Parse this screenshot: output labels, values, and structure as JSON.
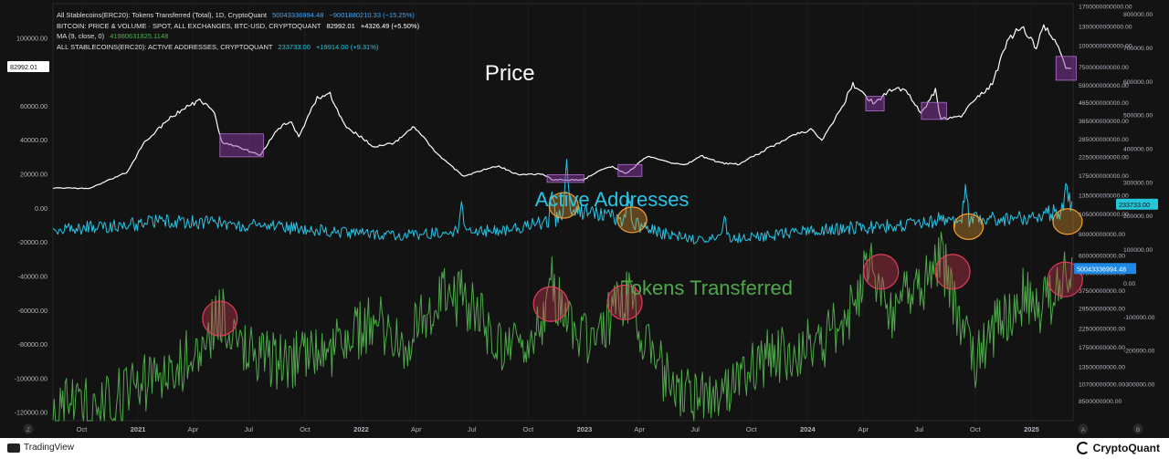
{
  "legend": {
    "rows": [
      {
        "text": "All Stablecoins(ERC20): Tokens Transferred (Total), 1D, CryptoQuant",
        "value": "50043336994.48",
        "change": "−9001880210.33 (−15.25%)",
        "value_color": "#42a5f5",
        "change_color": "#42a5f5"
      },
      {
        "text": "BITCOIN: PRICE & VOLUME · SPOT, ALL EXCHANGES, BTC-USD, CRYPTOQUANT",
        "value": "82992.01",
        "change": "+4326.49 (+5.50%)",
        "value_color": "#ffffff",
        "change_color": "#ffffff"
      },
      {
        "text": "MA (9, close, 0)",
        "value": "41980631825.1148",
        "change": "",
        "value_color": "#4caf50",
        "change_color": "#4caf50"
      },
      {
        "text": "ALL STABLECOINS(ERC20): ACTIVE ADDRESSES, CRYPTOQUANT",
        "value": "233733.00",
        "change": "+19914.00 (+9.31%)",
        "value_color": "#26c6da",
        "change_color": "#26c6da"
      }
    ]
  },
  "chart_data": {
    "type": "line",
    "x_range": [
      "2020-08-15",
      "2025-03-10"
    ],
    "x_ticks": [
      {
        "label": "Oct",
        "date": "2020-10-01"
      },
      {
        "label": "2021",
        "date": "2021-01-01"
      },
      {
        "label": "Apr",
        "date": "2021-04-01"
      },
      {
        "label": "Jul",
        "date": "2021-07-01"
      },
      {
        "label": "Oct",
        "date": "2021-10-01"
      },
      {
        "label": "2022",
        "date": "2022-01-01"
      },
      {
        "label": "Apr",
        "date": "2022-04-01"
      },
      {
        "label": "Jul",
        "date": "2022-07-01"
      },
      {
        "label": "Oct",
        "date": "2022-10-01"
      },
      {
        "label": "2023",
        "date": "2023-01-01"
      },
      {
        "label": "Apr",
        "date": "2023-04-01"
      },
      {
        "label": "Jul",
        "date": "2023-07-01"
      },
      {
        "label": "Oct",
        "date": "2023-10-01"
      },
      {
        "label": "2024",
        "date": "2024-01-01"
      },
      {
        "label": "Apr",
        "date": "2024-04-01"
      },
      {
        "label": "Jul",
        "date": "2024-07-01"
      },
      {
        "label": "Oct",
        "date": "2024-10-01"
      },
      {
        "label": "2025",
        "date": "2025-01-01"
      }
    ],
    "axes": {
      "price": {
        "side": "left",
        "scale": "linear",
        "range": [
          -125000,
          120000
        ],
        "ticks": [
          "100000.00",
          "60000.00",
          "40000.00",
          "20000.00",
          "0.00",
          "-20000.00",
          "-40000.00",
          "-60000.00",
          "-80000.00",
          "-100000.00",
          "-120000.00"
        ],
        "tick_values": [
          100000,
          60000,
          40000,
          20000,
          0,
          -20000,
          -40000,
          -60000,
          -80000,
          -100000,
          -120000
        ],
        "badge": "82992.01"
      },
      "tokens": {
        "side": "right-inner",
        "scale": "log",
        "range": [
          6500000000,
          1750000000000
        ],
        "ticks": [
          "1700000000000.00",
          "1300000000000.00",
          "1000000000000.00",
          "750000000000.00",
          "590000000000.00",
          "465000000000.00",
          "365000000000.00",
          "285000000000.00",
          "225000000000.00",
          "175000000000.00",
          "135000000000.00",
          "105000000000.00",
          "80000000000.00",
          "60000000000.00",
          "47500000000.00",
          "37500000000.00",
          "29500000000.00",
          "22500000000.00",
          "17500000000.00",
          "13500000000.00",
          "10700000000.00",
          "8500000000.00"
        ],
        "tick_values": [
          1700000000000,
          1300000000000,
          1000000000000,
          750000000000,
          590000000000,
          465000000000,
          365000000000,
          285000000000,
          225000000000,
          175000000000,
          135000000000,
          105000000000,
          80000000000,
          60000000000,
          47500000000,
          37500000000,
          29500000000,
          22500000000,
          17500000000,
          13500000000,
          10700000000,
          8500000000
        ],
        "badge": "50043336994.48"
      },
      "addresses": {
        "side": "right-outer",
        "scale": "linear",
        "range": [
          -410000,
          830000
        ],
        "ticks": [
          "800000.00",
          "700000.00",
          "600000.00",
          "500000.00",
          "400000.00",
          "300000.00",
          "200000.00",
          "100000.00",
          "0.00",
          "-100000.00",
          "-200000.00",
          "-300000.00"
        ],
        "tick_values": [
          800000,
          700000,
          600000,
          500000,
          400000,
          300000,
          200000,
          100000,
          0,
          -100000,
          -200000,
          -300000
        ],
        "badge": "233733.00"
      }
    },
    "series": [
      {
        "name": "BITCOIN: PRICE & VOLUME · SPOT, ALL EXCHANGES, BTC-USD, CRYPTOQUANT",
        "axis": "price",
        "color": "#ffffff",
        "noise": 0.02,
        "points": [
          [
            "2020-08-15",
            11800
          ],
          [
            "2020-10-15",
            11500
          ],
          [
            "2020-11-15",
            16500
          ],
          [
            "2020-12-15",
            21000
          ],
          [
            "2021-01-10",
            38000
          ],
          [
            "2021-02-20",
            52000
          ],
          [
            "2021-03-15",
            58000
          ],
          [
            "2021-04-14",
            63500
          ],
          [
            "2021-05-05",
            56000
          ],
          [
            "2021-05-19",
            38000
          ],
          [
            "2021-06-15",
            36000
          ],
          [
            "2021-07-20",
            30500
          ],
          [
            "2021-08-15",
            46000
          ],
          [
            "2021-09-07",
            51000
          ],
          [
            "2021-09-21",
            42000
          ],
          [
            "2021-10-20",
            64000
          ],
          [
            "2021-11-10",
            67500
          ],
          [
            "2021-12-05",
            48500
          ],
          [
            "2022-01-22",
            36000
          ],
          [
            "2022-02-24",
            38000
          ],
          [
            "2022-03-28",
            47500
          ],
          [
            "2022-05-10",
            30000
          ],
          [
            "2022-06-18",
            18500
          ],
          [
            "2022-07-30",
            23500
          ],
          [
            "2022-08-14",
            24400
          ],
          [
            "2022-09-15",
            19500
          ],
          [
            "2022-10-25",
            20000
          ],
          [
            "2022-11-09",
            16500
          ],
          [
            "2022-12-31",
            16500
          ],
          [
            "2023-01-20",
            21000
          ],
          [
            "2023-02-15",
            24500
          ],
          [
            "2023-03-10",
            20000
          ],
          [
            "2023-04-14",
            30500
          ],
          [
            "2023-05-25",
            26500
          ],
          [
            "2023-06-15",
            25000
          ],
          [
            "2023-07-10",
            30500
          ],
          [
            "2023-08-17",
            26000
          ],
          [
            "2023-09-12",
            25800
          ],
          [
            "2023-10-25",
            34500
          ],
          [
            "2023-12-10",
            43000
          ],
          [
            "2024-01-10",
            46500
          ],
          [
            "2024-01-23",
            39500
          ],
          [
            "2024-02-28",
            60000
          ],
          [
            "2024-03-14",
            73000
          ],
          [
            "2024-04-18",
            61500
          ],
          [
            "2024-05-20",
            70000
          ],
          [
            "2024-06-10",
            69000
          ],
          [
            "2024-07-05",
            56000
          ],
          [
            "2024-07-29",
            69500
          ],
          [
            "2024-08-05",
            52000
          ],
          [
            "2024-09-06",
            53500
          ],
          [
            "2024-09-30",
            64000
          ],
          [
            "2024-10-29",
            72500
          ],
          [
            "2024-11-12",
            88000
          ],
          [
            "2024-11-22",
            98500
          ],
          [
            "2024-12-17",
            106500
          ],
          [
            "2025-01-08",
            94000
          ],
          [
            "2025-01-20",
            108000
          ],
          [
            "2025-02-10",
            97000
          ],
          [
            "2025-02-28",
            80500
          ],
          [
            "2025-03-09",
            82992
          ]
        ]
      },
      {
        "name": "ALL STABLECOINS(ERC20): ACTIVE ADDRESSES, CRYPTOQUANT",
        "axis": "addresses",
        "color": "#29c5e6",
        "noise": 0.12,
        "points": [
          [
            "2020-08-15",
            160000
          ],
          [
            "2020-12-01",
            170000
          ],
          [
            "2021-03-01",
            185000
          ],
          [
            "2021-06-01",
            175000
          ],
          [
            "2021-09-01",
            165000
          ],
          [
            "2021-12-01",
            150000
          ],
          [
            "2022-03-01",
            140000
          ],
          [
            "2022-06-01",
            150000
          ],
          [
            "2022-09-01",
            160000
          ],
          [
            "2022-11-10",
            185000
          ],
          [
            "2022-12-10",
            210000
          ],
          [
            "2023-02-15",
            200000
          ],
          [
            "2023-05-01",
            150000
          ],
          [
            "2023-07-01",
            130000
          ],
          [
            "2023-10-01",
            135000
          ],
          [
            "2024-01-01",
            155000
          ],
          [
            "2024-04-01",
            165000
          ],
          [
            "2024-06-01",
            170000
          ],
          [
            "2024-09-01",
            185000
          ],
          [
            "2024-12-01",
            190000
          ],
          [
            "2025-02-15",
            210000
          ],
          [
            "2025-03-09",
            233733
          ]
        ],
        "spikes": [
          [
            "2022-06-15",
            240000
          ],
          [
            "2022-11-09",
            265000
          ],
          [
            "2022-12-03",
            340000
          ],
          [
            "2023-03-14",
            280000
          ],
          [
            "2023-08-18",
            215000
          ],
          [
            "2024-08-05",
            215000
          ],
          [
            "2024-09-15",
            300000
          ],
          [
            "2025-02-28",
            285000
          ]
        ]
      },
      {
        "name": "All Stablecoins(ERC20): Tokens Transferred (Total), 1D, CryptoQuant",
        "axis": "tokens",
        "color": "#4ea84a",
        "noise": 0.18,
        "points": [
          [
            "2020-08-15",
            5800000000
          ],
          [
            "2020-09-10",
            8500000000
          ],
          [
            "2020-11-01",
            8000000000
          ],
          [
            "2021-01-15",
            11000000000
          ],
          [
            "2021-03-15",
            14000000000
          ],
          [
            "2021-05-19",
            27000000000
          ],
          [
            "2021-06-15",
            16000000000
          ],
          [
            "2021-09-01",
            14000000000
          ],
          [
            "2021-12-01",
            18000000000
          ],
          [
            "2022-01-23",
            26000000000
          ],
          [
            "2022-03-15",
            18000000000
          ],
          [
            "2022-05-12",
            35000000000
          ],
          [
            "2022-06-18",
            33000000000
          ],
          [
            "2022-08-15",
            18000000000
          ],
          [
            "2022-10-01",
            15000000000
          ],
          [
            "2022-11-09",
            40000000000
          ],
          [
            "2022-12-15",
            20000000000
          ],
          [
            "2023-01-15",
            18000000000
          ],
          [
            "2023-03-11",
            36000000000
          ],
          [
            "2023-04-20",
            15000000000
          ],
          [
            "2023-06-15",
            9000000000
          ],
          [
            "2023-08-01",
            10000000000
          ],
          [
            "2023-09-15",
            11000000000
          ],
          [
            "2023-10-24",
            15000000000
          ],
          [
            "2023-12-15",
            17000000000
          ],
          [
            "2024-01-15",
            18000000000
          ],
          [
            "2024-03-01",
            24000000000
          ],
          [
            "2024-04-13",
            55000000000
          ],
          [
            "2024-05-15",
            28000000000
          ],
          [
            "2024-07-05",
            40000000000
          ],
          [
            "2024-08-05",
            60000000000
          ],
          [
            "2024-09-01",
            30000000000
          ],
          [
            "2024-10-01",
            15000000000
          ],
          [
            "2024-11-12",
            25000000000
          ],
          [
            "2024-12-20",
            35000000000
          ],
          [
            "2025-01-20",
            30000000000
          ],
          [
            "2025-02-28",
            48000000000
          ],
          [
            "2025-03-09",
            50043336994
          ]
        ]
      }
    ],
    "annotations": {
      "labels": [
        {
          "text": "Price",
          "color": "#ffffff",
          "date": "2022-09-01",
          "axis": "price",
          "value": 75000
        },
        {
          "text": "Active Addresses",
          "color": "#29c5e6",
          "date": "2023-02-15",
          "axis": "price",
          "value": 1000
        },
        {
          "text": "Tokens Transferred",
          "color": "#4ea84a",
          "date": "2023-07-20",
          "axis": "price",
          "value": -51000
        }
      ],
      "boxes": [
        {
          "axis": "price",
          "date_from": "2021-05-15",
          "date_to": "2021-07-25",
          "value_from": 30000,
          "value_to": 43500
        },
        {
          "axis": "price",
          "date_from": "2022-11-01",
          "date_to": "2022-12-31",
          "value_from": 15000,
          "value_to": 19500
        },
        {
          "axis": "price",
          "date_from": "2023-02-25",
          "date_to": "2023-04-05",
          "value_from": 18500,
          "value_to": 25500
        },
        {
          "axis": "price",
          "date_from": "2024-04-05",
          "date_to": "2024-05-05",
          "value_from": 57000,
          "value_to": 65500
        },
        {
          "axis": "price",
          "date_from": "2024-07-05",
          "date_to": "2024-08-15",
          "value_from": 52000,
          "value_to": 62000
        },
        {
          "axis": "price",
          "date_from": "2025-02-10",
          "date_to": "2025-03-15",
          "value_from": 75000,
          "value_to": 89000
        }
      ],
      "circles": [
        {
          "tone": "orange",
          "axis": "price",
          "date": "2022-11-28",
          "value": 1500
        },
        {
          "tone": "orange",
          "axis": "price",
          "date": "2023-03-20",
          "value": -7000
        },
        {
          "tone": "orange",
          "axis": "price",
          "date": "2024-09-20",
          "value": -11000
        },
        {
          "tone": "orange",
          "axis": "price",
          "date": "2025-03-01",
          "value": -8000
        },
        {
          "tone": "red",
          "axis": "price",
          "date": "2021-05-15",
          "value": -65000
        },
        {
          "tone": "red",
          "axis": "price",
          "date": "2022-11-07",
          "value": -56500
        },
        {
          "tone": "red",
          "axis": "price",
          "date": "2023-03-08",
          "value": -55500
        },
        {
          "tone": "red",
          "axis": "price",
          "date": "2024-04-30",
          "value": -37500
        },
        {
          "tone": "red",
          "axis": "price",
          "date": "2024-08-25",
          "value": -37500
        },
        {
          "tone": "red",
          "axis": "price",
          "date": "2025-02-25",
          "value": -42000
        }
      ]
    }
  },
  "ui": {
    "bottom_left_letter": "Z",
    "bottom_right_letters": [
      "A",
      "B"
    ],
    "footer_left": "TradingView",
    "footer_right": "CryptoQuant"
  },
  "colors": {
    "background": "#131313",
    "tick_text": "#b2b5be",
    "box_fill": "rgba(150,60,180,0.45)",
    "orange": "#f0a030",
    "red": "#e23c5a"
  }
}
